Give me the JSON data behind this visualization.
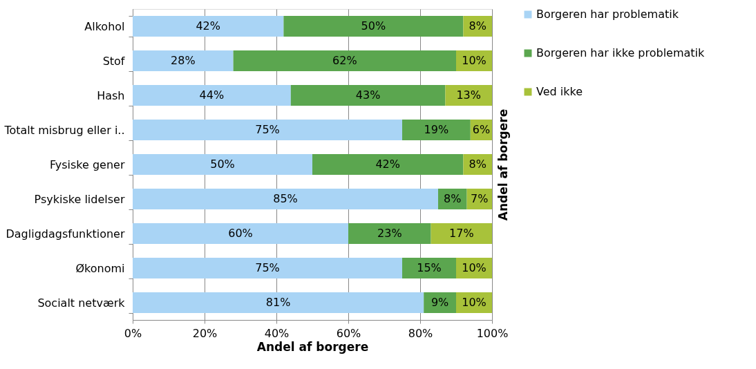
{
  "chart_data": {
    "type": "bar",
    "orientation": "horizontal",
    "stacked": true,
    "xlabel": "Andel af borgere",
    "ylabel": "Andel af borgere",
    "categories": [
      "Alkohol",
      "Stof",
      "Hash",
      "Totalt misbrug eller i..",
      "Fysiske gener",
      "Psykiske lidelser",
      "Dagligdagsfunktioner",
      "Økonomi",
      "Socialt netværk"
    ],
    "series": [
      {
        "name": "Borgeren har problematik",
        "color": "#a9d4f5",
        "values": [
          42,
          28,
          44,
          75,
          50,
          85,
          60,
          75,
          81
        ]
      },
      {
        "name": "Borgeren har ikke problematik",
        "color": "#5ba64f",
        "values": [
          50,
          62,
          43,
          19,
          42,
          8,
          23,
          15,
          9
        ]
      },
      {
        "name": "Ved ikke",
        "color": "#a8c23a",
        "values": [
          8,
          10,
          13,
          6,
          8,
          7,
          17,
          10,
          10
        ]
      }
    ],
    "xlim": [
      0,
      100
    ],
    "xticks": [
      {
        "value": 0,
        "label": "0%"
      },
      {
        "value": 20,
        "label": "20%"
      },
      {
        "value": 40,
        "label": "40%"
      },
      {
        "value": 60,
        "label": "60%"
      },
      {
        "value": 80,
        "label": "80%"
      },
      {
        "value": 100,
        "label": "100%"
      }
    ],
    "value_labels": [
      [
        "42%",
        "28%",
        "44%",
        "75%",
        "50%",
        "85%",
        "60%",
        "75%",
        "81%"
      ],
      [
        "50%",
        "62%",
        "43%",
        "19%",
        "42%",
        "8%",
        "23%",
        "15%",
        "9%"
      ],
      [
        "8%",
        "10%",
        "13%",
        "6%",
        "8%",
        "7%",
        "17%",
        "10%",
        "10%"
      ]
    ],
    "grid": "x",
    "legend": "right"
  }
}
